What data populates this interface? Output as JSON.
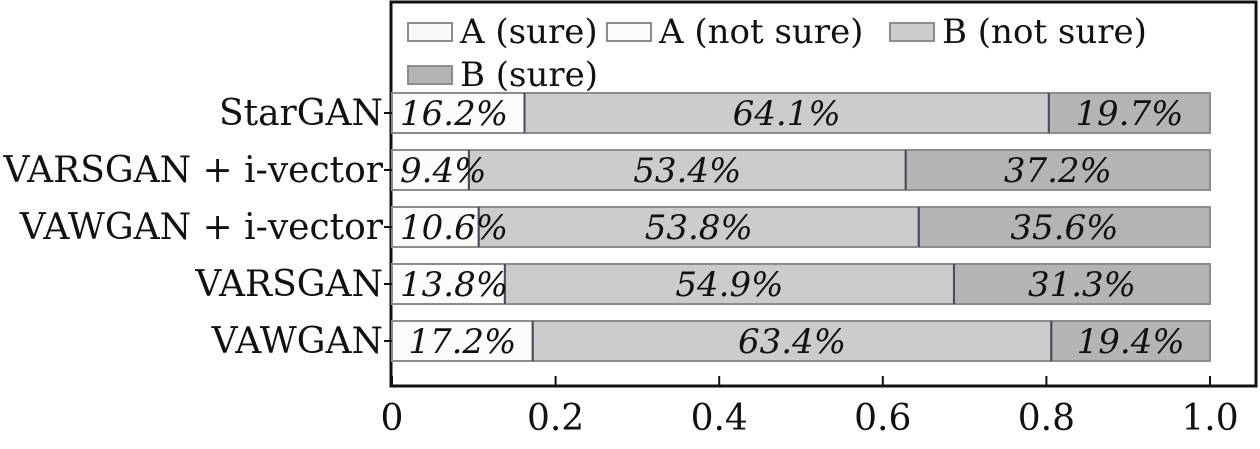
{
  "chart_data": {
    "type": "bar",
    "orientation": "horizontal",
    "stacked": true,
    "categories": [
      "StarGAN",
      "VARSGAN + i-vector",
      "VAWGAN + i-vector",
      "VARSGAN",
      "VAWGAN"
    ],
    "series": [
      {
        "name": "A (sure)",
        "values": [
          0.0,
          0.0,
          0.0,
          0.0,
          0.0
        ]
      },
      {
        "name": "A (not sure)",
        "values": [
          0.162,
          0.094,
          0.106,
          0.138,
          0.172
        ]
      },
      {
        "name": "B (not sure)",
        "values": [
          0.641,
          0.534,
          0.538,
          0.549,
          0.634
        ]
      },
      {
        "name": "B (sure)",
        "values": [
          0.197,
          0.372,
          0.356,
          0.313,
          0.194
        ]
      }
    ],
    "data_labels": [
      [
        "16.2%",
        "64.1%",
        "19.7%"
      ],
      [
        "9.4%",
        "53.4%",
        "37.2%"
      ],
      [
        "10.6%",
        "53.8%",
        "35.6%"
      ],
      [
        "13.8%",
        "54.9%",
        "31.3%"
      ],
      [
        "17.2%",
        "63.4%",
        "19.4%"
      ]
    ],
    "xticks": [
      "0",
      "0.2",
      "0.4",
      "0.6",
      "0.8",
      "1.0"
    ],
    "xtick_values": [
      0,
      0.2,
      0.4,
      0.6,
      0.8,
      1.0
    ],
    "xlim": [
      0,
      1.0
    ],
    "legend": [
      "A (sure)",
      "A (not sure)",
      "B (not sure)",
      "B (sure)"
    ],
    "legend_position": "top",
    "grid": false,
    "title": "",
    "xlabel": "",
    "ylabel": ""
  },
  "colors": {
    "a_sure": "#f8f8f8",
    "a_not_sure": "#fbfbfb",
    "b_not_sure": "#cbcdcc",
    "b_sure": "#b3b4b4",
    "bar_edge": "#8c8c8c",
    "divider": "#4a4a5a",
    "axis": "#111111"
  }
}
